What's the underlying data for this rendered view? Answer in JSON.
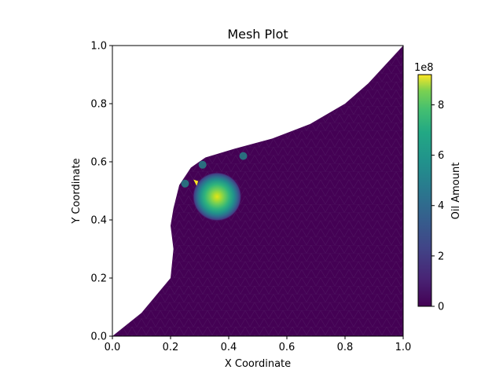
{
  "chart_data": {
    "type": "heatmap",
    "title": "Mesh Plot",
    "xlabel": "X Coordinate",
    "ylabel": "Y Coordinate",
    "xlim": [
      0.0,
      1.0
    ],
    "ylim": [
      0.0,
      1.0
    ],
    "xticks": [
      "0.0",
      "0.2",
      "0.4",
      "0.6",
      "0.8",
      "1.0"
    ],
    "yticks": [
      "0.0",
      "0.2",
      "0.4",
      "0.6",
      "0.8",
      "1.0"
    ],
    "colormap": "viridis",
    "grid": false,
    "colorbar": {
      "label": "Oil Amount",
      "exponent_label": "1e8",
      "range": [
        0,
        9.2
      ],
      "ticks": [
        "0",
        "2",
        "4",
        "6",
        "8"
      ],
      "tick_values": [
        0,
        2,
        4,
        6,
        8
      ]
    },
    "domain_boundary": [
      [
        0.0,
        0.0
      ],
      [
        0.1,
        0.08
      ],
      [
        0.2,
        0.2
      ],
      [
        0.21,
        0.3
      ],
      [
        0.2,
        0.38
      ],
      [
        0.21,
        0.44
      ],
      [
        0.23,
        0.52
      ],
      [
        0.27,
        0.58
      ],
      [
        0.32,
        0.615
      ],
      [
        0.42,
        0.645
      ],
      [
        0.55,
        0.68
      ],
      [
        0.68,
        0.73
      ],
      [
        0.8,
        0.8
      ],
      [
        0.88,
        0.87
      ],
      [
        1.0,
        1.0
      ]
    ],
    "oil_plume": {
      "center": [
        0.36,
        0.48
      ],
      "peak": 8.8,
      "radius": 0.085
    },
    "hot_cells": [
      {
        "x": 0.287,
        "y": 0.528,
        "value": 9.0
      },
      {
        "x": 0.31,
        "y": 0.59,
        "value": 4.0
      },
      {
        "x": 0.25,
        "y": 0.525,
        "value": 4.5
      },
      {
        "x": 0.45,
        "y": 0.62,
        "value": 3.0
      }
    ],
    "colors": {
      "viridis_low": "#440154",
      "viridis_mid": "#21918c",
      "viridis_high": "#fde725"
    }
  }
}
